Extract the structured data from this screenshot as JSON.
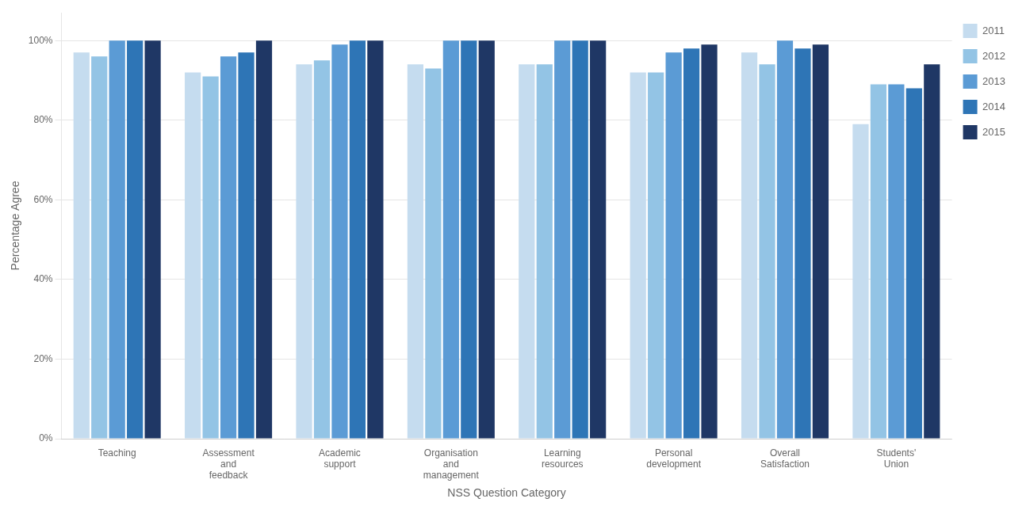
{
  "chart_data": {
    "type": "bar",
    "categories": [
      "Teaching",
      "Assessment\nand\nfeedback",
      "Academic\nsupport",
      "Organisation\nand\nmanagement",
      "Learning\nresources",
      "Personal\ndevelopment",
      "Overall\nSatisfaction",
      "Students'\nUnion"
    ],
    "series": [
      {
        "name": "2011",
        "color": "#C5DCEF",
        "values": [
          97,
          92,
          94,
          94,
          94,
          92,
          97,
          79
        ]
      },
      {
        "name": "2012",
        "color": "#93C4E5",
        "values": [
          96,
          91,
          95,
          93,
          94,
          92,
          94,
          89
        ]
      },
      {
        "name": "2013",
        "color": "#5B9BD5",
        "values": [
          100,
          96,
          99,
          100,
          100,
          97,
          100,
          89
        ]
      },
      {
        "name": "2014",
        "color": "#2E75B6",
        "values": [
          100,
          97,
          100,
          100,
          100,
          98,
          98,
          88
        ]
      },
      {
        "name": "2015",
        "color": "#1F3765",
        "values": [
          100,
          100,
          100,
          100,
          100,
          99,
          99,
          94
        ]
      }
    ],
    "xlabel": "NSS Question Category",
    "ylabel": "Percentage Agree",
    "ylim": [
      0,
      107
    ],
    "yticks": [
      {
        "value": 0,
        "label": "0%"
      },
      {
        "value": 20,
        "label": "20%"
      },
      {
        "value": 40,
        "label": "40%"
      },
      {
        "value": 60,
        "label": "60%"
      },
      {
        "value": 80,
        "label": "80%"
      },
      {
        "value": 100,
        "label": "100%"
      }
    ],
    "grid": true,
    "legend": "right"
  }
}
